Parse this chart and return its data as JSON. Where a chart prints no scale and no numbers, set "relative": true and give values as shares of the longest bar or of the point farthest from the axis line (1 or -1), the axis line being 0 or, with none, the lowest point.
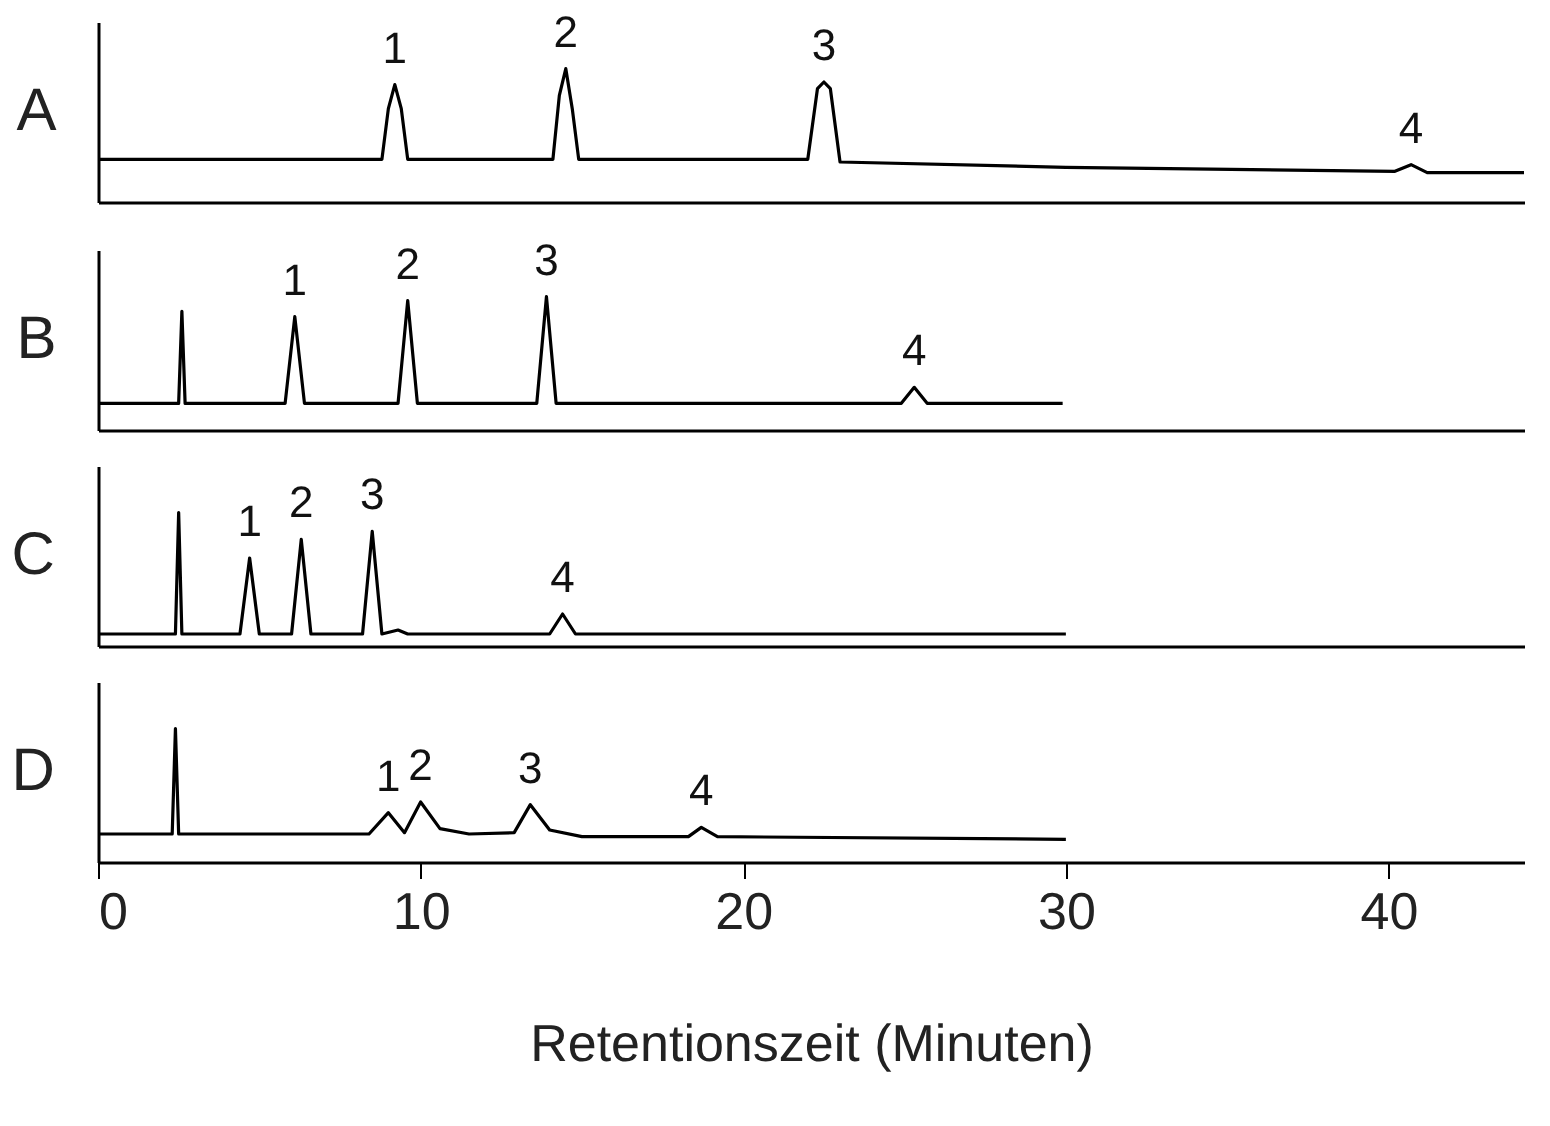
{
  "chart_data": [
    {
      "type": "line",
      "title": "A",
      "relative": true,
      "xlim": [
        0,
        44.2
      ],
      "xticks": [
        0,
        10,
        20,
        30,
        40
      ],
      "tick_labels": false,
      "series": [
        {
          "color": "#000000",
          "x": [
            0,
            8.8,
            9.0,
            9.2,
            9.4,
            9.6,
            14.1,
            14.3,
            14.5,
            14.7,
            14.9,
            22.0,
            22.3,
            22.5,
            22.7,
            23.0,
            30,
            40.2,
            40.7,
            41.2,
            44.2
          ],
          "values": [
            0.32,
            0.32,
            0.7,
            0.88,
            0.7,
            0.32,
            0.32,
            0.8,
            1,
            0.7,
            0.32,
            0.32,
            0.85,
            0.9,
            0.85,
            0.3,
            0.26,
            0.23,
            0.28,
            0.22,
            0.22
          ]
        }
      ],
      "annotations": [
        {
          "text": "1",
          "x": 9.2,
          "y": 0.88
        },
        {
          "text": "2",
          "x": 14.5,
          "y": 1
        },
        {
          "text": "3",
          "x": 22.5,
          "y": 0.9
        },
        {
          "text": "4",
          "x": 40.7,
          "y": 0.28
        }
      ]
    },
    {
      "type": "line",
      "title": "B",
      "relative": true,
      "xlim": [
        0,
        44.2
      ],
      "xticks": [
        0,
        10,
        20,
        30,
        40
      ],
      "tick_labels": false,
      "series": [
        {
          "color": "#000000",
          "x": [
            0,
            2.5,
            2.6,
            2.7,
            5.8,
            6.1,
            6.4,
            9.3,
            9.6,
            9.9,
            13.6,
            13.9,
            14.2,
            24.9,
            25.3,
            25.7,
            29.9
          ],
          "values": [
            0.2,
            0.2,
            0.89,
            0.2,
            0.2,
            0.85,
            0.2,
            0.2,
            0.97,
            0.2,
            0.2,
            1,
            0.2,
            0.2,
            0.32,
            0.2,
            0.2
          ]
        }
      ],
      "annotations": [
        {
          "text": "1",
          "x": 6.1,
          "y": 0.85
        },
        {
          "text": "2",
          "x": 9.6,
          "y": 0.97
        },
        {
          "text": "3",
          "x": 13.9,
          "y": 1
        },
        {
          "text": "4",
          "x": 25.3,
          "y": 0.32
        }
      ]
    },
    {
      "type": "line",
      "title": "C",
      "relative": true,
      "xlim": [
        0,
        44.2
      ],
      "xticks": [
        0,
        10,
        20,
        30,
        40
      ],
      "tick_labels": false,
      "series": [
        {
          "color": "#000000",
          "x": [
            0,
            2.4,
            2.5,
            2.6,
            4.4,
            4.7,
            5.0,
            6.0,
            6.3,
            6.6,
            8.2,
            8.5,
            8.8,
            9.3,
            9.6,
            14.0,
            14.4,
            14.8,
            30
          ],
          "values": [
            0.09,
            0.09,
            1,
            0.09,
            0.09,
            0.66,
            0.09,
            0.09,
            0.8,
            0.09,
            0.09,
            0.86,
            0.09,
            0.12,
            0.09,
            0.09,
            0.24,
            0.09,
            0.09
          ]
        }
      ],
      "annotations": [
        {
          "text": "1",
          "x": 4.7,
          "y": 0.66
        },
        {
          "text": "2",
          "x": 6.3,
          "y": 0.8
        },
        {
          "text": "3",
          "x": 8.5,
          "y": 0.86
        },
        {
          "text": "4",
          "x": 14.4,
          "y": 0.24
        }
      ]
    },
    {
      "type": "line",
      "title": "D",
      "relative": true,
      "xlim": [
        0,
        44.2
      ],
      "xticks": [
        0,
        10,
        20,
        30,
        40
      ],
      "tick_labels": "x",
      "xlabel": "Retentionszeit (Minuten)",
      "series": [
        {
          "color": "#000000",
          "x": [
            0,
            2.3,
            2.4,
            2.5,
            8.4,
            9.0,
            9.5,
            10.0,
            10.6,
            11.5,
            12.9,
            13.4,
            14.0,
            15.0,
            18.3,
            18.7,
            19.2,
            30
          ],
          "values": [
            0.21,
            0.21,
            1,
            0.21,
            0.21,
            0.37,
            0.22,
            0.45,
            0.25,
            0.21,
            0.22,
            0.43,
            0.24,
            0.19,
            0.19,
            0.26,
            0.19,
            0.17
          ]
        }
      ],
      "annotations": [
        {
          "text": "1",
          "x": 9.0,
          "y": 0.37
        },
        {
          "text": "2",
          "x": 10.0,
          "y": 0.45
        },
        {
          "text": "3",
          "x": 13.4,
          "y": 0.43
        },
        {
          "text": "4",
          "x": 18.7,
          "y": 0.26
        }
      ]
    }
  ]
}
